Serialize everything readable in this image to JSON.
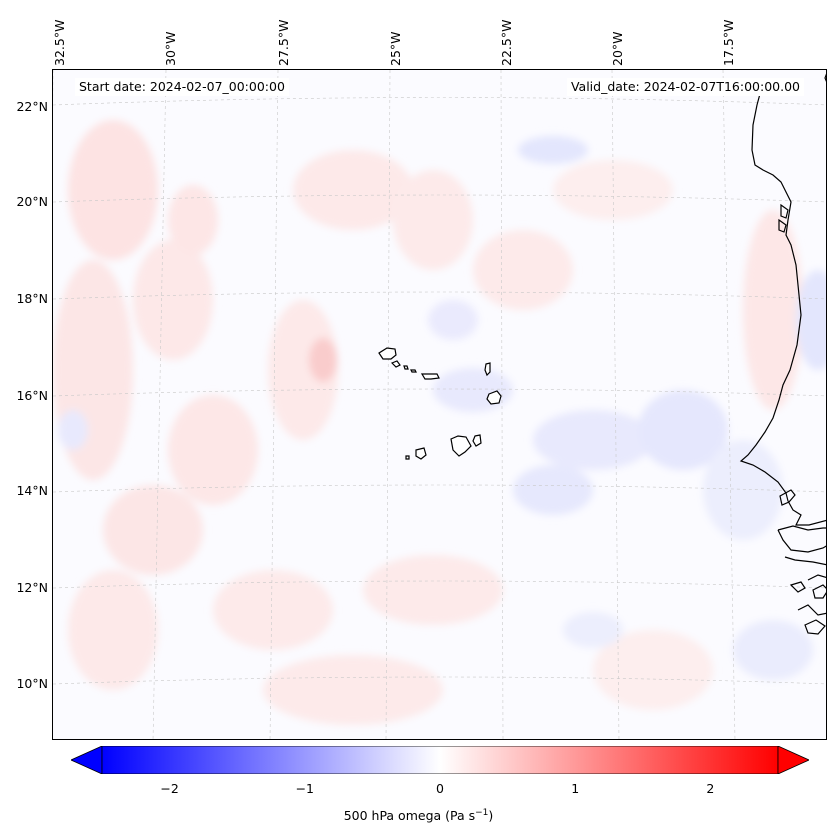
{
  "map": {
    "start_date": "Start date: 2024-02-07_00:00:00",
    "valid_date": "Valid_date: 2024-02-07T16:00:00.00",
    "longitude_labels": [
      "32.5°W",
      "30°W",
      "27.5°W",
      "25°W",
      "22.5°W",
      "20°W",
      "17.5°W"
    ],
    "latitude_labels": [
      "22°N",
      "20°N",
      "18°N",
      "16°N",
      "14°N",
      "12°N",
      "10°N"
    ],
    "field": "500 hPa omega",
    "coastlines": [
      "Cape Verde islands",
      "West African coast (Mauritania / Senegal / Gambia / Guinea-Bissau)"
    ]
  },
  "colorbar": {
    "label_prefix": "500 hPa omega (Pa s",
    "label_sup": "−1",
    "label_suffix": ")",
    "ticks": [
      "−2",
      "−1",
      "0",
      "1",
      "2"
    ],
    "tick_values": [
      -2,
      -1,
      0,
      1,
      2
    ],
    "range": [
      -2.5,
      2.5
    ],
    "colors": {
      "min": "#0000ff",
      "mid": "#ffffff",
      "max": "#ff0000"
    }
  }
}
